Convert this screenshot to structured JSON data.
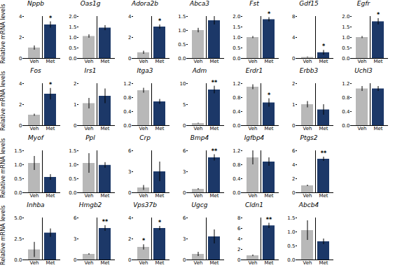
{
  "chart_data": [
    {
      "type": "bar",
      "title": "Nppb",
      "ylabel": "Relative mRNA levels",
      "categories": [
        "Veh",
        "Met"
      ],
      "values": [
        1.0,
        3.2
      ],
      "errors": [
        0.2,
        0.3
      ],
      "colors": [
        "#b8b8b8",
        "#1c3868"
      ],
      "ylim": [
        0,
        4
      ],
      "yticks": [
        0,
        2,
        4
      ],
      "annotations": [
        {
          "category": "Met",
          "text": "*"
        }
      ]
    },
    {
      "type": "bar",
      "title": "Oas1g",
      "categories": [
        "Veh",
        "Met"
      ],
      "values": [
        1.05,
        1.45
      ],
      "errors": [
        0.08,
        0.12
      ],
      "colors": [
        "#b8b8b8",
        "#1c3868"
      ],
      "ylim": [
        0,
        2.0
      ],
      "yticks": [
        {
          "value": 0,
          "label": "0.0"
        },
        0.5,
        {
          "value": 1,
          "label": "1.0"
        },
        1.5,
        {
          "value": 2,
          "label": "2.0"
        }
      ],
      "annotations": []
    },
    {
      "type": "bar",
      "title": "Adora2b",
      "categories": [
        "Veh",
        "Met"
      ],
      "values": [
        0.55,
        3.0
      ],
      "errors": [
        0.15,
        0.2
      ],
      "colors": [
        "#b8b8b8",
        "#1c3868"
      ],
      "ylim": [
        0,
        4
      ],
      "yticks": [
        0,
        2,
        4
      ],
      "annotations": [
        {
          "category": "Met",
          "text": "*"
        }
      ]
    },
    {
      "type": "bar",
      "title": "Abca3",
      "categories": [
        "Veh",
        "Met"
      ],
      "values": [
        1.0,
        1.35
      ],
      "errors": [
        0.08,
        0.15
      ],
      "colors": [
        "#b8b8b8",
        "#1c3868"
      ],
      "ylim": [
        0,
        1.5
      ],
      "yticks": [
        {
          "value": 0,
          "label": "0.0"
        },
        0.5,
        {
          "value": 1,
          "label": "1.0"
        },
        1.5
      ],
      "annotations": []
    },
    {
      "type": "bar",
      "title": "Fst",
      "categories": [
        "Veh",
        "Met"
      ],
      "values": [
        1.0,
        1.85
      ],
      "errors": [
        0.05,
        0.1
      ],
      "colors": [
        "#b8b8b8",
        "#1c3868"
      ],
      "ylim": [
        0,
        2.0
      ],
      "yticks": [
        {
          "value": 0,
          "label": "0.0"
        },
        0.5,
        {
          "value": 1,
          "label": "1.0"
        },
        1.5,
        {
          "value": 2,
          "label": "2.0"
        }
      ],
      "annotations": [
        {
          "category": "Met",
          "text": "*"
        }
      ]
    },
    {
      "type": "bar",
      "title": "Gdf15",
      "categories": [
        "Veh",
        "Met"
      ],
      "values": [
        0.2,
        1.1
      ],
      "errors": [
        0.08,
        0.45
      ],
      "colors": [
        "#b8b8b8",
        "#1c3868"
      ],
      "ylim": [
        0,
        8
      ],
      "yticks": [
        0,
        4,
        8
      ],
      "annotations": [
        {
          "category": "Met",
          "text": "*"
        }
      ]
    },
    {
      "type": "bar",
      "title": "Egfr",
      "categories": [
        "Veh",
        "Met"
      ],
      "values": [
        1.0,
        1.75
      ],
      "errors": [
        0.05,
        0.15
      ],
      "colors": [
        "#b8b8b8",
        "#1c3868"
      ],
      "ylim": [
        0,
        2.0
      ],
      "yticks": [
        {
          "value": 0,
          "label": "0.0"
        },
        0.5,
        {
          "value": 1,
          "label": "1.0"
        },
        1.5,
        {
          "value": 2,
          "label": "2.0"
        }
      ],
      "annotations": [
        {
          "category": "Met",
          "text": "*"
        }
      ]
    },
    {
      "type": "bar",
      "title": "Fos",
      "ylabel": "Relative mRNA levels",
      "categories": [
        "Veh",
        "Met"
      ],
      "values": [
        1.0,
        3.0
      ],
      "errors": [
        0.1,
        0.55
      ],
      "colors": [
        "#b8b8b8",
        "#1c3868"
      ],
      "ylim": [
        0,
        4
      ],
      "yticks": [
        0,
        2,
        4
      ],
      "annotations": [
        {
          "category": "Met",
          "text": "*"
        }
      ]
    },
    {
      "type": "bar",
      "title": "Irs1",
      "categories": [
        "Veh",
        "Met"
      ],
      "values": [
        1.05,
        1.4
      ],
      "errors": [
        0.25,
        0.35
      ],
      "colors": [
        "#b8b8b8",
        "#1c3868"
      ],
      "ylim": [
        0,
        2
      ],
      "yticks": [
        0,
        1,
        2
      ],
      "annotations": []
    },
    {
      "type": "bar",
      "title": "Itga3",
      "categories": [
        "Veh",
        "Met"
      ],
      "values": [
        1.0,
        0.68
      ],
      "errors": [
        0.07,
        0.07
      ],
      "colors": [
        "#b8b8b8",
        "#1c3868"
      ],
      "ylim": [
        0,
        1.2
      ],
      "yticks": [
        {
          "value": 0,
          "label": "0.0"
        },
        0.4,
        0.8,
        1.2
      ],
      "annotations": []
    },
    {
      "type": "bar",
      "title": "Adm",
      "categories": [
        "Veh",
        "Met"
      ],
      "values": [
        0.5,
        8.5
      ],
      "errors": [
        0.1,
        0.9
      ],
      "colors": [
        "#b8b8b8",
        "#1c3868"
      ],
      "ylim": [
        0,
        10
      ],
      "yticks": [
        0,
        5,
        10
      ],
      "annotations": [
        {
          "category": "Met",
          "text": "**"
        }
      ]
    },
    {
      "type": "bar",
      "title": "Erdr1",
      "categories": [
        "Veh",
        "Met"
      ],
      "values": [
        1.1,
        0.65
      ],
      "errors": [
        0.07,
        0.12
      ],
      "colors": [
        "#b8b8b8",
        "#1c3868"
      ],
      "ylim": [
        0,
        1.2
      ],
      "yticks": [
        {
          "value": 0,
          "label": "0.0"
        },
        0.4,
        0.8,
        1.2
      ],
      "annotations": [
        {
          "category": "Met",
          "text": "*"
        }
      ]
    },
    {
      "type": "bar",
      "title": "Erbb3",
      "categories": [
        "Veh",
        "Met"
      ],
      "values": [
        1.0,
        0.75
      ],
      "errors": [
        0.15,
        0.25
      ],
      "colors": [
        "#b8b8b8",
        "#1c3868"
      ],
      "ylim": [
        0,
        2
      ],
      "yticks": [
        0,
        1,
        2
      ],
      "annotations": []
    },
    {
      "type": "bar",
      "title": "Uchl3",
      "categories": [
        "Veh",
        "Met"
      ],
      "values": [
        1.05,
        1.05
      ],
      "errors": [
        0.07,
        0.07
      ],
      "colors": [
        "#b8b8b8",
        "#1c3868"
      ],
      "ylim": [
        0,
        1.2
      ],
      "yticks": [
        {
          "value": 0,
          "label": "0.0"
        },
        0.4,
        0.8,
        1.2
      ],
      "annotations": []
    },
    {
      "type": "bar",
      "title": "Myof",
      "ylabel": "Relative mRNA levels",
      "categories": [
        "Veh",
        "Met"
      ],
      "values": [
        1.05,
        0.55
      ],
      "errors": [
        0.25,
        0.1
      ],
      "colors": [
        "#b8b8b8",
        "#1c3868"
      ],
      "ylim": [
        0,
        1.5
      ],
      "yticks": [
        {
          "value": 0,
          "label": "0.0"
        },
        0.5,
        {
          "value": 1,
          "label": "1.0"
        },
        1.5
      ],
      "annotations": []
    },
    {
      "type": "bar",
      "title": "Ppl",
      "categories": [
        "Veh",
        "Met"
      ],
      "values": [
        1.05,
        0.98
      ],
      "errors": [
        0.35,
        0.1
      ],
      "colors": [
        "#b8b8b8",
        "#1c3868"
      ],
      "ylim": [
        0,
        1.5
      ],
      "yticks": [
        {
          "value": 0,
          "label": "0.0"
        },
        0.5,
        {
          "value": 1,
          "label": "1.0"
        },
        1.5
      ],
      "annotations": []
    },
    {
      "type": "bar",
      "title": "Crp",
      "categories": [
        "Veh",
        "Met"
      ],
      "values": [
        0.7,
        3.0
      ],
      "errors": [
        0.35,
        1.4
      ],
      "colors": [
        "#b8b8b8",
        "#1c3868"
      ],
      "ylim": [
        0,
        6
      ],
      "yticks": [
        0,
        3,
        6
      ],
      "annotations": []
    },
    {
      "type": "bar",
      "title": "Bmp4",
      "categories": [
        "Veh",
        "Met"
      ],
      "values": [
        0.5,
        5.0
      ],
      "errors": [
        0.1,
        0.45
      ],
      "colors": [
        "#b8b8b8",
        "#1c3868"
      ],
      "ylim": [
        0,
        6
      ],
      "yticks": [
        0,
        3,
        6
      ],
      "annotations": [
        {
          "category": "Met",
          "text": "**"
        }
      ]
    },
    {
      "type": "bar",
      "title": "Igfbp4",
      "categories": [
        "Veh",
        "Met"
      ],
      "values": [
        1.0,
        0.88
      ],
      "errors": [
        0.2,
        0.12
      ],
      "colors": [
        "#b8b8b8",
        "#1c3868"
      ],
      "ylim": [
        0,
        1.2
      ],
      "yticks": [
        {
          "value": 0,
          "label": "0.0"
        },
        0.4,
        0.8,
        1.2
      ],
      "annotations": []
    },
    {
      "type": "bar",
      "title": "Ptgs2",
      "categories": [
        "Veh",
        "Met"
      ],
      "values": [
        1.0,
        4.8
      ],
      "errors": [
        0.1,
        0.3
      ],
      "colors": [
        "#b8b8b8",
        "#1c3868"
      ],
      "ylim": [
        0,
        6
      ],
      "yticks": [
        0,
        2,
        4,
        6
      ],
      "annotations": [
        {
          "category": "Met",
          "text": "**"
        }
      ]
    },
    {
      "type": "bar",
      "title": "Inhba",
      "ylabel": "Relative mRNA levels",
      "categories": [
        "Veh",
        "Met"
      ],
      "values": [
        1.2,
        3.2
      ],
      "errors": [
        0.9,
        0.5
      ],
      "colors": [
        "#b8b8b8",
        "#1c3868"
      ],
      "ylim": [
        0,
        5.0
      ],
      "yticks": [
        {
          "value": 0,
          "label": "0.0"
        },
        2.5,
        {
          "value": 5,
          "label": "5.0"
        }
      ],
      "annotations": []
    },
    {
      "type": "bar",
      "title": "Hmgb2",
      "categories": [
        "Veh",
        "Met"
      ],
      "values": [
        0.8,
        4.5
      ],
      "errors": [
        0.1,
        0.4
      ],
      "colors": [
        "#b8b8b8",
        "#1c3868"
      ],
      "ylim": [
        0,
        6
      ],
      "yticks": [
        0,
        3,
        6
      ],
      "annotations": [
        {
          "category": "Met",
          "text": "**"
        }
      ]
    },
    {
      "type": "bar",
      "title": "Vps37b",
      "categories": [
        "Veh",
        "Met"
      ],
      "values": [
        1.2,
        3.0
      ],
      "errors": [
        0.25,
        0.2
      ],
      "colors": [
        "#b8b8b8",
        "#1c3868"
      ],
      "ylim": [
        0,
        4
      ],
      "yticks": [
        0,
        2,
        4
      ],
      "annotations": [
        {
          "category": "Met",
          "text": "*"
        },
        {
          "category": "Veh",
          "text": "*"
        }
      ]
    },
    {
      "type": "bar",
      "title": "Ugcg",
      "categories": [
        "Veh",
        "Met"
      ],
      "values": [
        0.8,
        3.3
      ],
      "errors": [
        0.3,
        1.0
      ],
      "colors": [
        "#b8b8b8",
        "#1c3868"
      ],
      "ylim": [
        0,
        6
      ],
      "yticks": [
        0,
        3,
        6
      ],
      "annotations": []
    },
    {
      "type": "bar",
      "title": "Cldn1",
      "categories": [
        "Veh",
        "Met"
      ],
      "values": [
        0.8,
        6.5
      ],
      "errors": [
        0.15,
        0.5
      ],
      "colors": [
        "#b8b8b8",
        "#1c3868"
      ],
      "ylim": [
        0,
        8
      ],
      "yticks": [
        0,
        2,
        4,
        6,
        8
      ],
      "annotations": [
        {
          "category": "Met",
          "text": "**"
        }
      ]
    },
    {
      "type": "bar",
      "title": "Abcb4",
      "categories": [
        "Veh",
        "Met"
      ],
      "values": [
        1.05,
        0.65
      ],
      "errors": [
        0.35,
        0.1
      ],
      "colors": [
        "#b8b8b8",
        "#1c3868"
      ],
      "ylim": [
        0,
        1.5
      ],
      "yticks": [
        {
          "value": 0,
          "label": "0.0"
        },
        0.5,
        {
          "value": 1,
          "label": "1.0"
        },
        1.5
      ],
      "annotations": []
    }
  ]
}
